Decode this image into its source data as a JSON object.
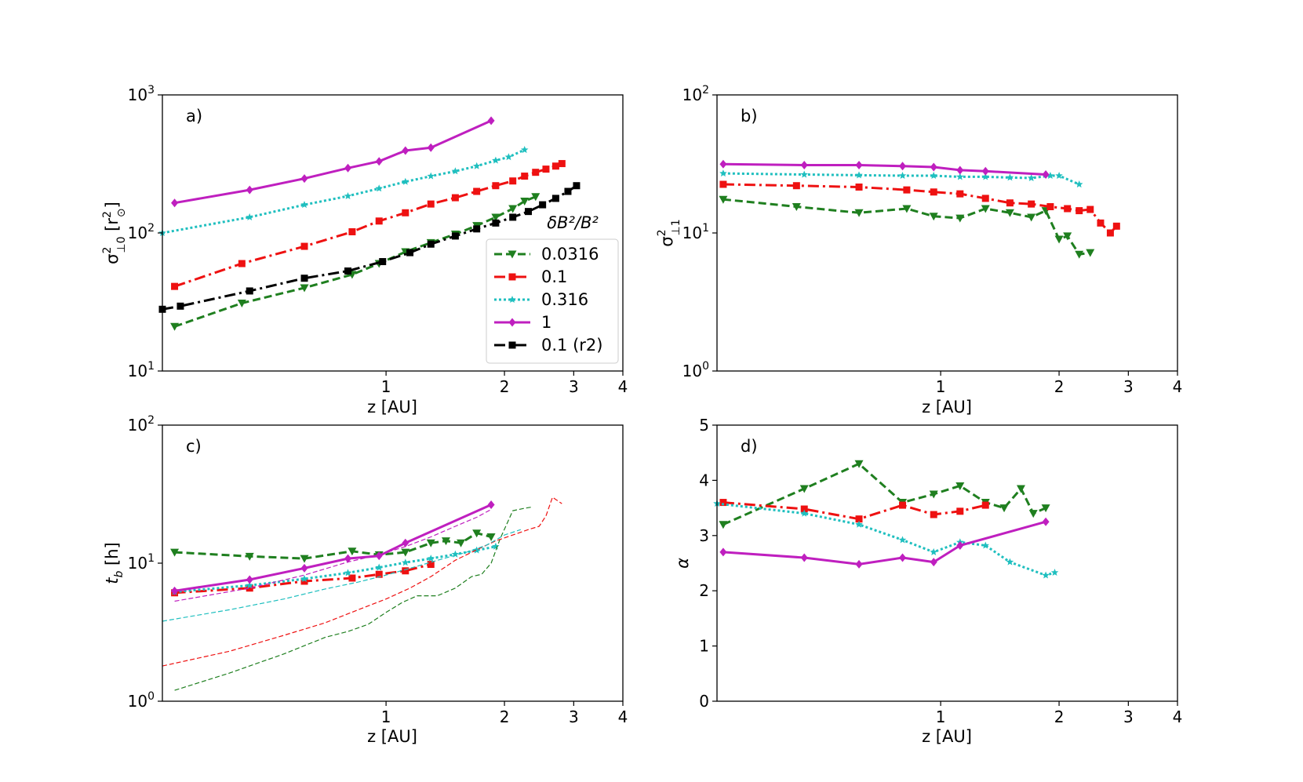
{
  "chart_data": [
    {
      "type": "line",
      "panel_label": "a)",
      "xlabel": "z [AU]",
      "ylabel": "σ²⊥0 [r²⊙]",
      "x_scale": "log",
      "y_scale": "log",
      "xlim": [
        0.27,
        4
      ],
      "ylim": [
        10,
        1000
      ],
      "x_ticks": [
        {
          "value": 1,
          "label": "1"
        },
        {
          "value": 2,
          "label": "2"
        },
        {
          "value": 3,
          "label": "3"
        },
        {
          "value": 4,
          "label": "4"
        }
      ],
      "y_ticks": [
        {
          "value": 10,
          "base": "10",
          "exp": "1"
        },
        {
          "value": 100,
          "base": "10",
          "exp": "2"
        },
        {
          "value": 1000,
          "base": "10",
          "exp": "3"
        }
      ],
      "legend": {
        "title": "δB²/B²",
        "position": "lower-right",
        "entries": [
          "0.0316",
          "0.1",
          "0.316",
          "1",
          "0.1 (r2)"
        ]
      },
      "series": [
        {
          "name": "0.0316",
          "color": "#1f7f1f",
          "dash": "10 5",
          "marker": "triangle-down",
          "x": [
            0.29,
            0.43,
            0.62,
            0.82,
            0.96,
            1.12,
            1.3,
            1.5,
            1.7,
            1.9,
            2.1,
            2.25,
            2.4
          ],
          "y": [
            21,
            31,
            40,
            50,
            60,
            73,
            85,
            98,
            113,
            130,
            150,
            170,
            183
          ]
        },
        {
          "name": "0.1",
          "color": "#ee1111",
          "dash": "14 5 3 5",
          "marker": "square",
          "x": [
            0.29,
            0.43,
            0.62,
            0.82,
            0.96,
            1.12,
            1.3,
            1.5,
            1.7,
            1.9,
            2.1,
            2.25,
            2.4,
            2.55,
            2.7,
            2.8
          ],
          "y": [
            41,
            60,
            80,
            102,
            122,
            140,
            162,
            180,
            200,
            220,
            238,
            258,
            275,
            290,
            305,
            318
          ]
        },
        {
          "name": "0.316",
          "color": "#1fbfbf",
          "dash": "3 3",
          "marker": "star",
          "x": [
            0.27,
            0.45,
            0.62,
            0.8,
            0.96,
            1.12,
            1.3,
            1.5,
            1.7,
            1.9,
            2.05,
            2.25
          ],
          "y": [
            100,
            130,
            160,
            185,
            210,
            235,
            258,
            280,
            305,
            335,
            355,
            400
          ]
        },
        {
          "name": "1",
          "color": "#bf1fbf",
          "dash": "",
          "marker": "diamond",
          "x": [
            0.29,
            0.45,
            0.62,
            0.8,
            0.96,
            1.12,
            1.3,
            1.85
          ],
          "y": [
            165,
            205,
            248,
            295,
            330,
            395,
            415,
            650
          ]
        },
        {
          "name": "0.1 (r2)",
          "color": "#000000",
          "dash": "14 5 3 5",
          "marker": "square",
          "x": [
            0.27,
            0.3,
            0.45,
            0.62,
            0.8,
            0.98,
            1.15,
            1.3,
            1.5,
            1.7,
            1.9,
            2.1,
            2.3,
            2.5,
            2.7,
            2.9,
            3.05
          ],
          "y": [
            28,
            29.5,
            38,
            47,
            53,
            62,
            72,
            83,
            95,
            107,
            118,
            130,
            143,
            160,
            178,
            200,
            220
          ]
        }
      ]
    },
    {
      "type": "line",
      "panel_label": "b)",
      "xlabel": "z [AU]",
      "ylabel": "σ²⊥1",
      "x_scale": "log",
      "y_scale": "log",
      "xlim": [
        0.27,
        4
      ],
      "ylim": [
        1,
        100
      ],
      "x_ticks": [
        {
          "value": 1,
          "label": "1"
        },
        {
          "value": 2,
          "label": "2"
        },
        {
          "value": 3,
          "label": "3"
        },
        {
          "value": 4,
          "label": "4"
        }
      ],
      "y_ticks": [
        {
          "value": 1,
          "base": "10",
          "exp": "0"
        },
        {
          "value": 10,
          "base": "10",
          "exp": "1"
        },
        {
          "value": 100,
          "base": "10",
          "exp": "2"
        }
      ],
      "series": [
        {
          "name": "0.0316",
          "color": "#1f7f1f",
          "dash": "10 5",
          "marker": "triangle-down",
          "x": [
            0.28,
            0.43,
            0.62,
            0.82,
            0.96,
            1.12,
            1.3,
            1.5,
            1.7,
            1.85,
            2.0,
            2.1,
            2.25,
            2.4
          ],
          "y": [
            17.5,
            15.5,
            14,
            15,
            13.2,
            12.8,
            15,
            14,
            13,
            14.5,
            9,
            9.5,
            7,
            7.2
          ]
        },
        {
          "name": "0.1",
          "color": "#ee1111",
          "dash": "14 5 3 5",
          "marker": "square",
          "x": [
            0.28,
            0.43,
            0.62,
            0.82,
            0.96,
            1.12,
            1.3,
            1.5,
            1.7,
            1.9,
            2.1,
            2.25,
            2.4,
            2.55,
            2.7,
            2.8
          ],
          "y": [
            22.5,
            22,
            21.5,
            20.5,
            19.8,
            19.2,
            17.8,
            16.5,
            16.2,
            15.5,
            15,
            14.5,
            14.8,
            11.8,
            10,
            11.2
          ]
        },
        {
          "name": "0.316",
          "color": "#1fbfbf",
          "dash": "3 3",
          "marker": "star",
          "x": [
            0.28,
            0.45,
            0.62,
            0.8,
            0.96,
            1.12,
            1.3,
            1.5,
            1.7,
            1.9,
            2.0,
            2.25
          ],
          "y": [
            27,
            26.5,
            26.2,
            26,
            26,
            25.5,
            25.5,
            25.2,
            25,
            26,
            26,
            22.5
          ]
        },
        {
          "name": "1",
          "color": "#bf1fbf",
          "dash": "",
          "marker": "diamond",
          "x": [
            0.28,
            0.45,
            0.62,
            0.8,
            0.96,
            1.12,
            1.3,
            1.85
          ],
          "y": [
            31.5,
            31,
            31,
            30.5,
            30,
            28.5,
            28,
            26.5
          ]
        }
      ]
    },
    {
      "type": "line",
      "panel_label": "c)",
      "xlabel": "z [AU]",
      "ylabel": "t_b [h]",
      "x_scale": "log",
      "y_scale": "log",
      "xlim": [
        0.27,
        4
      ],
      "ylim": [
        1,
        100
      ],
      "x_ticks": [
        {
          "value": 1,
          "label": "1"
        },
        {
          "value": 2,
          "label": "2"
        },
        {
          "value": 3,
          "label": "3"
        },
        {
          "value": 4,
          "label": "4"
        }
      ],
      "y_ticks": [
        {
          "value": 1,
          "base": "10",
          "exp": "0"
        },
        {
          "value": 10,
          "base": "10",
          "exp": "1"
        },
        {
          "value": 100,
          "base": "10",
          "exp": "2"
        }
      ],
      "series": [
        {
          "name": "0.0316",
          "color": "#1f7f1f",
          "dash": "10 5",
          "marker": "triangle-down",
          "x": [
            0.29,
            0.45,
            0.62,
            0.82,
            0.96,
            1.12,
            1.3,
            1.42,
            1.55,
            1.7,
            1.85
          ],
          "y": [
            12,
            11.2,
            10.8,
            12.2,
            11.5,
            12,
            14,
            14.5,
            14,
            16.5,
            15.5
          ]
        },
        {
          "name": "0.1",
          "color": "#ee1111",
          "dash": "14 5 3 5",
          "marker": "square",
          "x": [
            0.29,
            0.45,
            0.62,
            0.82,
            0.96,
            1.12,
            1.3
          ],
          "y": [
            6.1,
            6.6,
            7.4,
            7.8,
            8.3,
            8.8,
            9.8
          ]
        },
        {
          "name": "0.316",
          "color": "#1fbfbf",
          "dash": "3 3",
          "marker": "star",
          "x": [
            0.29,
            0.45,
            0.62,
            0.8,
            0.96,
            1.12,
            1.3,
            1.5,
            1.7,
            1.9
          ],
          "y": [
            6.2,
            6.9,
            7.7,
            8.5,
            9.3,
            10.1,
            10.8,
            11.6,
            12.4,
            13.2
          ]
        },
        {
          "name": "1",
          "color": "#bf1fbf",
          "dash": "",
          "marker": "diamond",
          "x": [
            0.29,
            0.45,
            0.62,
            0.8,
            0.96,
            1.12,
            1.85
          ],
          "y": [
            6.3,
            7.6,
            9.2,
            10.8,
            11.3,
            14,
            26.5
          ]
        },
        {
          "name": "",
          "color": "#1f7f1f",
          "dash": "6 3",
          "thin": true,
          "marker": "none",
          "x": [
            0.29,
            0.4,
            0.55,
            0.7,
            0.8,
            0.9,
            1.0,
            1.1,
            1.2,
            1.35,
            1.5,
            1.65,
            1.75,
            1.85,
            1.95,
            2.1,
            2.25,
            2.35
          ],
          "y": [
            1.2,
            1.6,
            2.2,
            2.9,
            3.2,
            3.6,
            4.4,
            5.2,
            5.8,
            5.8,
            6.6,
            8,
            8.3,
            10,
            15,
            24,
            25,
            25.5
          ]
        },
        {
          "name": "",
          "color": "#ee1111",
          "dash": "6 3",
          "thin": true,
          "marker": "none",
          "x": [
            0.27,
            0.4,
            0.55,
            0.7,
            0.85,
            1.0,
            1.15,
            1.3,
            1.5,
            1.7,
            1.9,
            2.1,
            2.3,
            2.45,
            2.55,
            2.65,
            2.8
          ],
          "y": [
            1.8,
            2.3,
            3.0,
            3.7,
            4.6,
            5.5,
            6.6,
            8,
            10.5,
            12.5,
            14.5,
            16,
            17.5,
            18.5,
            22,
            30,
            27
          ]
        },
        {
          "name": "",
          "color": "#1fbfbf",
          "dash": "6 3",
          "thin": true,
          "marker": "none",
          "x": [
            0.27,
            0.4,
            0.55,
            0.7,
            0.85,
            1.0,
            1.2,
            1.4,
            1.6,
            1.8,
            2.0,
            2.2
          ],
          "y": [
            3.8,
            4.6,
            5.5,
            6.5,
            7.3,
            8.2,
            9.5,
            10.8,
            12,
            13.5,
            16,
            17.5
          ]
        },
        {
          "name": "",
          "color": "#bf1fbf",
          "dash": "6 3",
          "thin": true,
          "marker": "none",
          "x": [
            0.29,
            0.45,
            0.62,
            0.8,
            0.96,
            1.12,
            1.3,
            1.5,
            1.7,
            1.85
          ],
          "y": [
            5.3,
            6.6,
            8.2,
            10.2,
            11.5,
            13.2,
            15.5,
            18.5,
            21.5,
            24.5
          ]
        }
      ]
    },
    {
      "type": "line",
      "panel_label": "d)",
      "xlabel": "z [AU]",
      "ylabel": "α",
      "x_scale": "log",
      "y_scale": "linear",
      "xlim": [
        0.27,
        4
      ],
      "ylim": [
        0,
        5
      ],
      "x_ticks": [
        {
          "value": 1,
          "label": "1"
        },
        {
          "value": 2,
          "label": "2"
        },
        {
          "value": 3,
          "label": "3"
        },
        {
          "value": 4,
          "label": "4"
        }
      ],
      "y_ticks": [
        {
          "value": 0,
          "label": "0"
        },
        {
          "value": 1,
          "label": "1"
        },
        {
          "value": 2,
          "label": "2"
        },
        {
          "value": 3,
          "label": "3"
        },
        {
          "value": 4,
          "label": "4"
        },
        {
          "value": 5,
          "label": "5"
        }
      ],
      "series": [
        {
          "name": "0.0316",
          "color": "#1f7f1f",
          "dash": "10 5",
          "marker": "triangle-down",
          "x": [
            0.28,
            0.45,
            0.62,
            0.8,
            0.96,
            1.12,
            1.3,
            1.45,
            1.6,
            1.72,
            1.85
          ],
          "y": [
            3.2,
            3.85,
            4.3,
            3.6,
            3.75,
            3.9,
            3.6,
            3.5,
            3.85,
            3.4,
            3.5
          ]
        },
        {
          "name": "0.1",
          "color": "#ee1111",
          "dash": "14 5 3 5",
          "marker": "square",
          "x": [
            0.28,
            0.45,
            0.62,
            0.8,
            0.96,
            1.12,
            1.3
          ],
          "y": [
            3.6,
            3.48,
            3.3,
            3.55,
            3.38,
            3.44,
            3.55
          ]
        },
        {
          "name": "0.316",
          "color": "#1fbfbf",
          "dash": "3 3",
          "marker": "star",
          "x": [
            0.27,
            0.45,
            0.62,
            0.8,
            0.96,
            1.12,
            1.3,
            1.5,
            1.85,
            1.95
          ],
          "y": [
            3.58,
            3.4,
            3.2,
            2.92,
            2.7,
            2.88,
            2.82,
            2.52,
            2.28,
            2.33
          ]
        },
        {
          "name": "1",
          "color": "#bf1fbf",
          "dash": "",
          "marker": "diamond",
          "x": [
            0.28,
            0.45,
            0.62,
            0.8,
            0.96,
            1.12,
            1.85
          ],
          "y": [
            2.7,
            2.6,
            2.48,
            2.6,
            2.52,
            2.82,
            3.25
          ]
        }
      ]
    }
  ]
}
